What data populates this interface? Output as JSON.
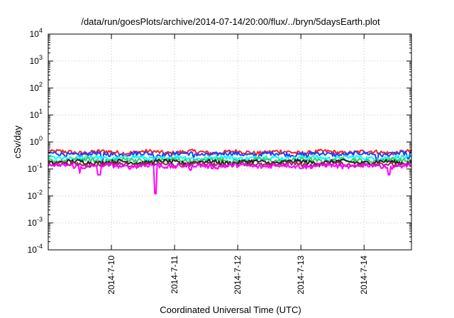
{
  "chart_data": {
    "type": "line",
    "title": "/data/run/goesPlots/archive/2014-07-14/20:00/flux/../bryn/5daysEarth.plot",
    "xlabel": "Coordinated Universal Time (UTC)",
    "ylabel": "cSv/day",
    "y_scale": "log",
    "ylim_exponents": [
      -4,
      4
    ],
    "y_tick_labels": [
      {
        "base": "10",
        "exp": "4",
        "value": 10000
      },
      {
        "base": "10",
        "exp": "3",
        "value": 1000
      },
      {
        "base": "10",
        "exp": "2",
        "value": 100
      },
      {
        "base": "10",
        "exp": "1",
        "value": 10
      },
      {
        "base": "10",
        "exp": "0",
        "value": 1
      },
      {
        "base": "10",
        "exp": "-1",
        "value": 0.1
      },
      {
        "base": "10",
        "exp": "-2",
        "value": 0.01
      },
      {
        "base": "10",
        "exp": "-3",
        "value": 0.001
      },
      {
        "base": "10",
        "exp": "-4",
        "value": 0.0001
      }
    ],
    "x_tick_labels": [
      "2014-7-10",
      "2014-7-11",
      "2014-7-12",
      "2014-7-13",
      "2014-7-14"
    ],
    "x_range_days": [
      0.0,
      5.75
    ],
    "x_tick_positions_days": [
      1,
      2,
      3,
      4,
      5
    ],
    "grid": true,
    "legend": "none",
    "series": [
      {
        "color": "#ff2020",
        "base": 0.42,
        "dips": []
      },
      {
        "color": "#2040ff",
        "base": 0.36,
        "dips": [
          [
            0.5,
            0.22
          ],
          [
            0.85,
            0.2
          ],
          [
            1.7,
            0.24
          ],
          [
            2.3,
            0.24
          ],
          [
            3.3,
            0.22
          ],
          [
            4.1,
            0.24
          ],
          [
            5.2,
            0.22
          ],
          [
            5.7,
            0.24
          ]
        ]
      },
      {
        "color": "#00ffff",
        "base": 0.26,
        "dips": []
      },
      {
        "color": "#30d060",
        "base": 0.21,
        "dips": []
      },
      {
        "color": "#202020",
        "base": 0.18,
        "dips": []
      },
      {
        "color": "#a02060",
        "base": 0.15,
        "dips": []
      },
      {
        "color": "#ff00ff",
        "base": 0.13,
        "dips": [
          [
            0.5,
            0.07
          ],
          [
            0.8,
            0.06
          ],
          [
            0.81,
            0.06
          ],
          [
            1.7,
            0.012
          ],
          [
            2.25,
            0.09
          ],
          [
            5.4,
            0.06
          ]
        ]
      }
    ]
  }
}
